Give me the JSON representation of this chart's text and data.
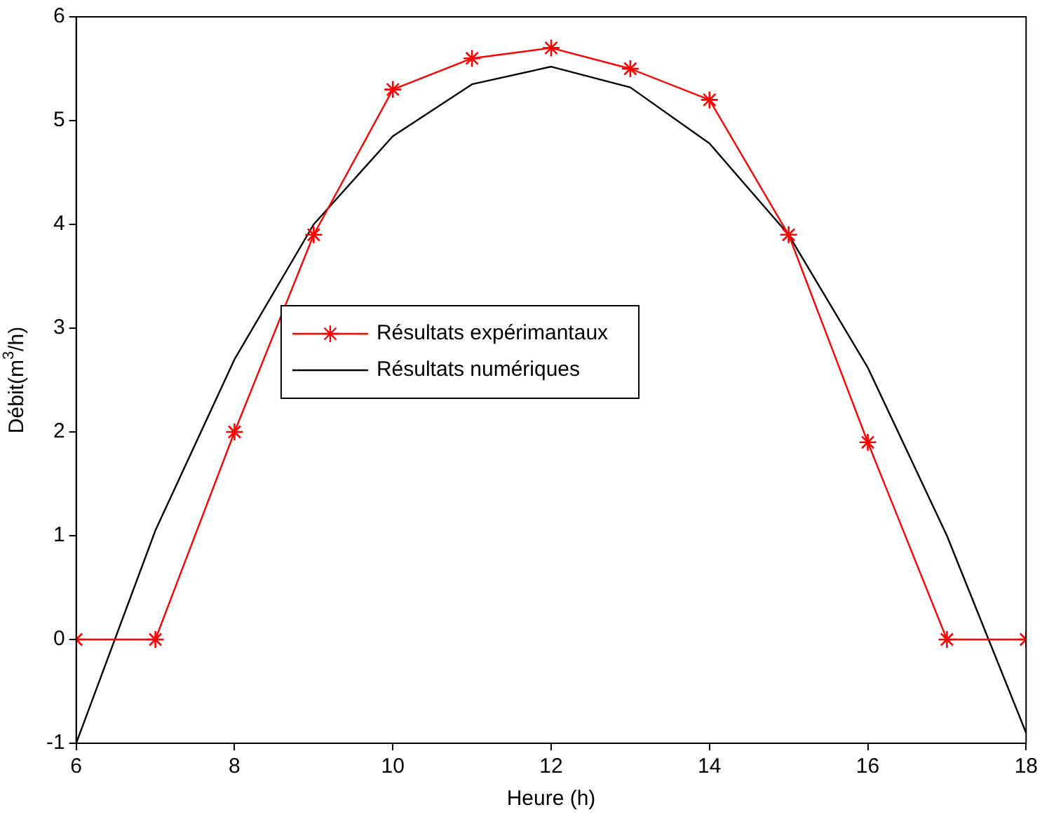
{
  "chart_data": {
    "type": "line",
    "xlabel": "Heure (h)",
    "ylabel": "Débit(m$^{3}$/h)",
    "x": [
      6,
      7,
      8,
      9,
      10,
      11,
      12,
      13,
      14,
      15,
      16,
      17,
      18
    ],
    "series": [
      {
        "name": "Résultats expérimantaux",
        "color": "#ff0000",
        "marker": "cross",
        "values": [
          0,
          0,
          2,
          3.9,
          5.3,
          5.6,
          5.7,
          5.5,
          5.2,
          3.9,
          1.9,
          0,
          0
        ]
      },
      {
        "name": "Résultats numériques",
        "color": "#000000",
        "marker": "none",
        "values": [
          -1,
          1.05,
          2.7,
          4.0,
          4.85,
          5.35,
          5.52,
          5.32,
          4.78,
          3.9,
          2.62,
          1.0,
          -0.9
        ]
      }
    ],
    "xlim": [
      6,
      18
    ],
    "xticks": [
      6,
      8,
      10,
      12,
      14,
      16,
      18
    ],
    "ylim": [
      -1,
      6
    ],
    "yticks": [
      -1,
      0,
      1,
      2,
      3,
      4,
      5,
      6
    ],
    "grid": false,
    "legend": "center",
    "line_style": "solid"
  }
}
